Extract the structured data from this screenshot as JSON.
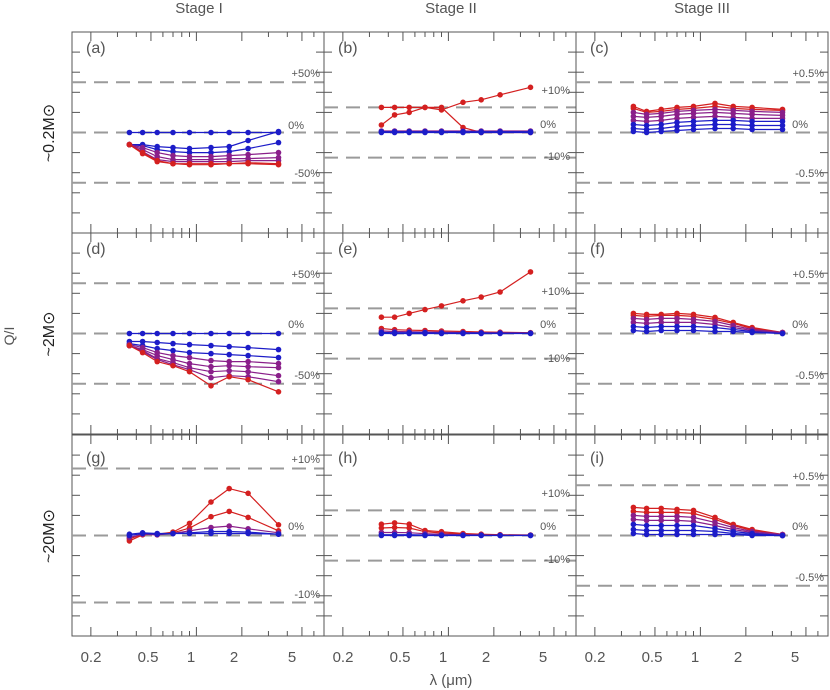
{
  "figure": {
    "stage_titles": [
      "Stage I",
      "Stage II",
      "Stage III"
    ],
    "row_labels": [
      "~0.2M⊙",
      "~2M⊙",
      "~20M⊙"
    ],
    "y_label": "Q/I",
    "x_label": "λ (μm)",
    "x_ticks": [
      0.2,
      0.5,
      1,
      2,
      5
    ],
    "x_tick_labels": [
      "0.2",
      "0.5",
      "1",
      "2",
      "5"
    ],
    "colors": {
      "red": "#d42020",
      "blue": "#1c1cc8",
      "axis": "#555555",
      "dash": "#9a9a9a",
      "text": "#555555"
    }
  },
  "chart_data": [
    {
      "panel": "(a)",
      "type": "line",
      "row": 0,
      "col": 0,
      "ylim": [
        -100,
        100
      ],
      "dashed": [
        50,
        0,
        -50
      ],
      "pct_labels": [
        {
          "v": 50,
          "t": "+50%"
        },
        {
          "v": 0,
          "t": "0%"
        },
        {
          "v": -50,
          "t": "-50%"
        }
      ],
      "x": [
        0.36,
        0.44,
        0.55,
        0.7,
        0.9,
        1.25,
        1.65,
        2.2,
        3.5
      ],
      "series": [
        {
          "color": "blue",
          "values": [
            0,
            0,
            0,
            0,
            0,
            0,
            0,
            0,
            0
          ]
        },
        {
          "color": "blue",
          "values": [
            -12,
            -12,
            -14,
            -15,
            -16,
            -15,
            -14,
            -8,
            1
          ]
        },
        {
          "color": "blue",
          "values": [
            -12,
            -13,
            -17,
            -19,
            -20,
            -20,
            -19,
            -16,
            -10
          ]
        },
        {
          "color": "purple",
          "values": [
            -12,
            -15,
            -20,
            -23,
            -24,
            -24,
            -23,
            -22,
            -20
          ]
        },
        {
          "color": "purple",
          "values": [
            -12,
            -17,
            -24,
            -27,
            -27,
            -27,
            -26,
            -26,
            -25
          ]
        },
        {
          "color": "purple",
          "values": [
            -12,
            -19,
            -27,
            -29,
            -29,
            -29,
            -29,
            -28,
            -28
          ]
        },
        {
          "color": "red",
          "values": [
            -12,
            -20,
            -28,
            -31,
            -31,
            -31,
            -31,
            -30,
            -31
          ]
        },
        {
          "color": "red",
          "values": [
            -12,
            -21,
            -29,
            -31,
            -32,
            -32,
            -31,
            -31,
            -32
          ]
        }
      ]
    },
    {
      "panel": "(b)",
      "type": "line",
      "row": 0,
      "col": 1,
      "ylim": [
        -40,
        40
      ],
      "dashed": [
        10,
        0,
        -10
      ],
      "pct_labels": [
        {
          "v": 10,
          "t": "+10%"
        },
        {
          "v": 0,
          "t": "0%"
        },
        {
          "v": -10,
          "t": "-10%"
        }
      ],
      "x": [
        0.36,
        0.44,
        0.55,
        0.7,
        0.9,
        1.25,
        1.65,
        2.2,
        3.5
      ],
      "series": [
        {
          "color": "red",
          "values": [
            10,
            10,
            10,
            10,
            10,
            2,
            0,
            0,
            0
          ]
        },
        {
          "color": "red",
          "values": [
            3,
            7,
            8,
            10,
            9,
            12,
            13,
            15,
            18
          ]
        },
        {
          "color": "purple",
          "values": [
            0.6,
            0.6,
            0.6,
            0.6,
            0.6,
            0.6,
            0.6,
            0.6,
            0.6
          ]
        },
        {
          "color": "blue",
          "values": [
            0.3,
            0.3,
            0.3,
            0.3,
            0.3,
            0.3,
            0.3,
            0.3,
            0.3
          ]
        },
        {
          "color": "blue",
          "values": [
            0,
            0,
            0,
            0,
            0,
            0,
            0,
            0,
            0
          ]
        }
      ]
    },
    {
      "panel": "(c)",
      "type": "line",
      "row": 0,
      "col": 2,
      "ylim": [
        -1,
        1
      ],
      "dashed": [
        0.5,
        0,
        -0.5
      ],
      "pct_labels": [
        {
          "v": 0.5,
          "t": "+0.5%"
        },
        {
          "v": 0,
          "t": "0%"
        },
        {
          "v": -0.5,
          "t": "-0.5%"
        }
      ],
      "x": [
        0.36,
        0.44,
        0.55,
        0.7,
        0.9,
        1.25,
        1.65,
        2.2,
        3.5
      ],
      "series": [
        {
          "color": "red",
          "values": [
            0.26,
            0.21,
            0.23,
            0.25,
            0.26,
            0.29,
            0.26,
            0.25,
            0.23
          ]
        },
        {
          "color": "red",
          "values": [
            0.24,
            0.2,
            0.21,
            0.23,
            0.24,
            0.26,
            0.24,
            0.23,
            0.22
          ]
        },
        {
          "color": "purple",
          "values": [
            0.2,
            0.18,
            0.19,
            0.21,
            0.22,
            0.23,
            0.22,
            0.21,
            0.2
          ]
        },
        {
          "color": "purple",
          "values": [
            0.16,
            0.15,
            0.16,
            0.18,
            0.19,
            0.2,
            0.19,
            0.18,
            0.17
          ]
        },
        {
          "color": "purple",
          "values": [
            0.12,
            0.11,
            0.12,
            0.14,
            0.15,
            0.16,
            0.15,
            0.14,
            0.14
          ]
        },
        {
          "color": "blue",
          "values": [
            0.08,
            0.07,
            0.08,
            0.1,
            0.11,
            0.12,
            0.12,
            0.11,
            0.11
          ]
        },
        {
          "color": "blue",
          "values": [
            0.04,
            0.03,
            0.04,
            0.06,
            0.07,
            0.08,
            0.08,
            0.07,
            0.07
          ]
        },
        {
          "color": "blue",
          "values": [
            0.01,
            0.0,
            0.01,
            0.02,
            0.03,
            0.04,
            0.04,
            0.03,
            0.03
          ]
        }
      ]
    },
    {
      "panel": "(d)",
      "type": "line",
      "row": 1,
      "col": 0,
      "ylim": [
        -100,
        100
      ],
      "dashed": [
        50,
        0,
        -50
      ],
      "pct_labels": [
        {
          "v": 50,
          "t": "+50%"
        },
        {
          "v": 0,
          "t": "0%"
        },
        {
          "v": -50,
          "t": "-50%"
        }
      ],
      "x": [
        0.36,
        0.44,
        0.55,
        0.7,
        0.9,
        1.25,
        1.65,
        2.2,
        3.5
      ],
      "series": [
        {
          "color": "blue",
          "values": [
            0,
            0,
            0,
            0,
            0,
            0,
            0,
            0,
            0
          ]
        },
        {
          "color": "blue",
          "values": [
            -8,
            -8,
            -9,
            -10,
            -11,
            -12,
            -13,
            -14,
            -16
          ]
        },
        {
          "color": "blue",
          "values": [
            -10,
            -12,
            -15,
            -17,
            -19,
            -20,
            -21,
            -22,
            -24
          ]
        },
        {
          "color": "purple",
          "values": [
            -11,
            -14,
            -19,
            -22,
            -24,
            -27,
            -28,
            -28,
            -30
          ]
        },
        {
          "color": "purple",
          "values": [
            -12,
            -16,
            -22,
            -26,
            -30,
            -33,
            -32,
            -33,
            -34
          ]
        },
        {
          "color": "purple",
          "values": [
            -12,
            -17,
            -25,
            -29,
            -34,
            -38,
            -37,
            -38,
            -42
          ]
        },
        {
          "color": "purple",
          "values": [
            -12,
            -18,
            -26,
            -31,
            -36,
            -44,
            -42,
            -43,
            -48
          ]
        },
        {
          "color": "red",
          "values": [
            -12,
            -19,
            -28,
            -32,
            -38,
            -52,
            -43,
            -46,
            -58
          ]
        }
      ]
    },
    {
      "panel": "(e)",
      "type": "line",
      "row": 1,
      "col": 1,
      "ylim": [
        -40,
        40
      ],
      "dashed": [
        10,
        0,
        -10
      ],
      "pct_labels": [
        {
          "v": 10,
          "t": "+10%"
        },
        {
          "v": 0,
          "t": "0%"
        },
        {
          "v": -10,
          "t": "-10%"
        }
      ],
      "x": [
        0.36,
        0.44,
        0.55,
        0.7,
        0.9,
        1.25,
        1.65,
        2.2,
        3.5
      ],
      "series": [
        {
          "color": "red",
          "values": [
            6.5,
            6.5,
            8,
            9.5,
            11,
            13,
            14.5,
            16.5,
            24.5
          ]
        },
        {
          "color": "red",
          "values": [
            2,
            1.5,
            1.3,
            1.2,
            1,
            0.8,
            0.6,
            0.5,
            0.3
          ]
        },
        {
          "color": "purple",
          "values": [
            1,
            0.8,
            0.7,
            0.6,
            0.5,
            0.4,
            0.3,
            0.3,
            0.2
          ]
        },
        {
          "color": "blue",
          "values": [
            0.4,
            0.3,
            0.3,
            0.3,
            0.2,
            0.2,
            0.2,
            0.1,
            0.1
          ]
        },
        {
          "color": "blue",
          "values": [
            0,
            0,
            0,
            0,
            0,
            0,
            0,
            0,
            0
          ]
        }
      ]
    },
    {
      "panel": "(f)",
      "type": "line",
      "row": 1,
      "col": 2,
      "ylim": [
        -1,
        1
      ],
      "dashed": [
        0.5,
        0,
        -0.5
      ],
      "pct_labels": [
        {
          "v": 0.5,
          "t": "+0.5%"
        },
        {
          "v": 0,
          "t": "0%"
        },
        {
          "v": -0.5,
          "t": "-0.5%"
        }
      ],
      "x": [
        0.36,
        0.44,
        0.55,
        0.7,
        0.9,
        1.25,
        1.65,
        2.2,
        3.5
      ],
      "series": [
        {
          "color": "red",
          "values": [
            0.2,
            0.19,
            0.19,
            0.2,
            0.19,
            0.16,
            0.11,
            0.06,
            0.01
          ]
        },
        {
          "color": "red",
          "values": [
            0.18,
            0.17,
            0.18,
            0.18,
            0.17,
            0.14,
            0.1,
            0.05,
            0.01
          ]
        },
        {
          "color": "purple",
          "values": [
            0.15,
            0.14,
            0.15,
            0.15,
            0.14,
            0.12,
            0.08,
            0.04,
            0.01
          ]
        },
        {
          "color": "purple",
          "values": [
            0.11,
            0.1,
            0.11,
            0.11,
            0.11,
            0.09,
            0.06,
            0.03,
            0.01
          ]
        },
        {
          "color": "blue",
          "values": [
            0.07,
            0.06,
            0.07,
            0.07,
            0.07,
            0.06,
            0.04,
            0.02,
            0.0
          ]
        },
        {
          "color": "blue",
          "values": [
            0.03,
            0.02,
            0.03,
            0.03,
            0.03,
            0.02,
            0.02,
            0.01,
            0.0
          ]
        }
      ]
    },
    {
      "panel": "(g)",
      "type": "line",
      "row": 2,
      "col": 0,
      "ylim": [
        -15,
        15
      ],
      "dashed": [
        10,
        0,
        -10
      ],
      "pct_labels": [
        {
          "v": 10,
          "t": "+10%"
        },
        {
          "v": 0,
          "t": "0%"
        },
        {
          "v": -10,
          "t": "-10%"
        }
      ],
      "x": [
        0.36,
        0.44,
        0.55,
        0.7,
        0.9,
        1.25,
        1.65,
        2.2,
        3.5
      ],
      "series": [
        {
          "color": "red",
          "values": [
            -0.8,
            0.1,
            0.2,
            0.5,
            1.8,
            5.0,
            7.0,
            6.3,
            1.6
          ]
        },
        {
          "color": "red",
          "values": [
            -0.5,
            0.2,
            0.1,
            0.4,
            1.1,
            2.8,
            3.6,
            2.7,
            0.7
          ]
        },
        {
          "color": "purple",
          "values": [
            -0.3,
            0.2,
            0.1,
            0.3,
            0.7,
            1.2,
            1.4,
            1.0,
            0.4
          ]
        },
        {
          "color": "blue",
          "values": [
            0.0,
            0.3,
            0.2,
            0.3,
            0.4,
            0.6,
            0.6,
            0.5,
            0.2
          ]
        },
        {
          "color": "blue",
          "values": [
            0.2,
            0.4,
            0.3,
            0.3,
            0.3,
            0.3,
            0.3,
            0.3,
            0.2
          ]
        }
      ]
    },
    {
      "panel": "(h)",
      "type": "line",
      "row": 2,
      "col": 1,
      "ylim": [
        -40,
        40
      ],
      "dashed": [
        10,
        0,
        -10
      ],
      "pct_labels": [
        {
          "v": 10,
          "t": "+10%"
        },
        {
          "v": 0,
          "t": "0%"
        },
        {
          "v": -10,
          "t": "-10%"
        }
      ],
      "x": [
        0.36,
        0.44,
        0.55,
        0.7,
        0.9,
        1.25,
        1.65,
        2.2,
        3.5
      ],
      "series": [
        {
          "color": "red",
          "values": [
            4.5,
            5,
            4.5,
            2,
            1.5,
            0.8,
            0.5,
            0.3,
            0.2
          ]
        },
        {
          "color": "red",
          "values": [
            3,
            3.2,
            3,
            1.5,
            1,
            0.6,
            0.4,
            0.2,
            0.1
          ]
        },
        {
          "color": "purple",
          "values": [
            1.2,
            1.2,
            1.1,
            0.7,
            0.5,
            0.3,
            0.2,
            0.1,
            0.1
          ]
        },
        {
          "color": "blue",
          "values": [
            0.3,
            0.3,
            0.3,
            0.2,
            0.1,
            0.1,
            0.1,
            0.05,
            0.05
          ]
        },
        {
          "color": "blue",
          "values": [
            0,
            0,
            0,
            0,
            0,
            0,
            0,
            0,
            0
          ]
        }
      ]
    },
    {
      "panel": "(i)",
      "type": "line",
      "row": 2,
      "col": 2,
      "ylim": [
        -1,
        1
      ],
      "dashed": [
        0.5,
        0,
        -0.5
      ],
      "pct_labels": [
        {
          "v": 0.5,
          "t": "+0.5%"
        },
        {
          "v": 0,
          "t": "0%"
        },
        {
          "v": -0.5,
          "t": "-0.5%"
        }
      ],
      "x": [
        0.36,
        0.44,
        0.55,
        0.7,
        0.9,
        1.25,
        1.65,
        2.2,
        3.5
      ],
      "series": [
        {
          "color": "red",
          "values": [
            0.28,
            0.27,
            0.27,
            0.26,
            0.25,
            0.18,
            0.11,
            0.06,
            0.01
          ]
        },
        {
          "color": "red",
          "values": [
            0.24,
            0.23,
            0.23,
            0.23,
            0.22,
            0.16,
            0.1,
            0.05,
            0.01
          ]
        },
        {
          "color": "purple",
          "values": [
            0.2,
            0.19,
            0.19,
            0.19,
            0.18,
            0.13,
            0.08,
            0.04,
            0.01
          ]
        },
        {
          "color": "purple",
          "values": [
            0.16,
            0.15,
            0.15,
            0.15,
            0.14,
            0.1,
            0.06,
            0.03,
            0.0
          ]
        },
        {
          "color": "blue",
          "values": [
            0.11,
            0.1,
            0.1,
            0.1,
            0.1,
            0.07,
            0.04,
            0.02,
            0.0
          ]
        },
        {
          "color": "blue",
          "values": [
            0.06,
            0.05,
            0.05,
            0.05,
            0.05,
            0.04,
            0.02,
            0.01,
            0.0
          ]
        },
        {
          "color": "blue",
          "values": [
            0.02,
            0.01,
            0.01,
            0.01,
            0.01,
            0.01,
            0.01,
            0.0,
            0.0
          ]
        }
      ]
    }
  ]
}
